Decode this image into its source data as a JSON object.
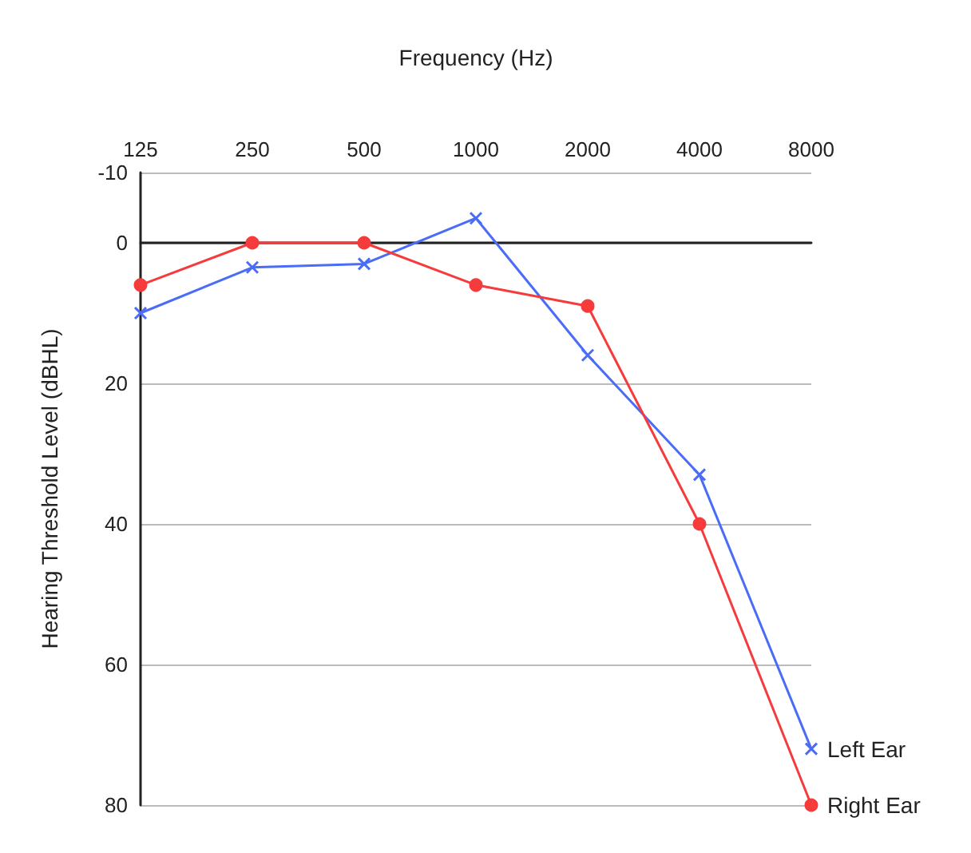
{
  "chart_data": {
    "type": "line",
    "xlabel": "Frequency (Hz)",
    "ylabel": "Hearing Threshold Level (dBHL)",
    "categories": [
      "125",
      "250",
      "500",
      "1000",
      "2000",
      "4000",
      "8000"
    ],
    "series": [
      {
        "name": "Left Ear",
        "color": "#4a6cf7",
        "marker": "cross",
        "values": [
          10,
          3.5,
          3,
          -3.5,
          16,
          33,
          72
        ]
      },
      {
        "name": "Right Ear",
        "color": "#f53b3b",
        "marker": "circle",
        "values": [
          6,
          0,
          0,
          6,
          9,
          40,
          80
        ]
      }
    ],
    "ylim": [
      80,
      -10
    ],
    "yticks": [
      -10,
      0,
      20,
      40,
      60,
      80
    ],
    "grid": "y",
    "line_style": "solid"
  }
}
